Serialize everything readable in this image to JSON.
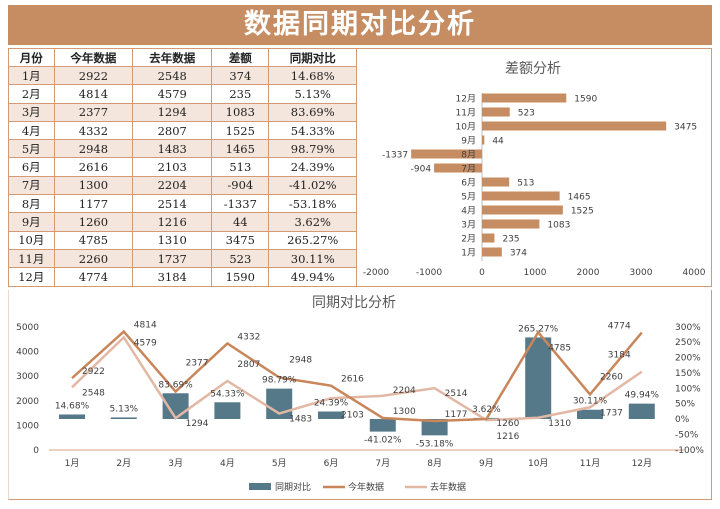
{
  "title": "数据同期对比分析",
  "table": {
    "headers": [
      "月份",
      "今年数据",
      "去年数据",
      "差额",
      "同期对比"
    ],
    "rows": [
      [
        "1月",
        "2922",
        "2548",
        "374",
        "14.68%"
      ],
      [
        "2月",
        "4814",
        "4579",
        "235",
        "5.13%"
      ],
      [
        "3月",
        "2377",
        "1294",
        "1083",
        "83.69%"
      ],
      [
        "4月",
        "4332",
        "2807",
        "1525",
        "54.33%"
      ],
      [
        "5月",
        "2948",
        "1483",
        "1465",
        "98.79%"
      ],
      [
        "6月",
        "2616",
        "2103",
        "513",
        "24.39%"
      ],
      [
        "7月",
        "1300",
        "2204",
        "-904",
        "-41.02%"
      ],
      [
        "8月",
        "1177",
        "2514",
        "-1337",
        "-53.18%"
      ],
      [
        "9月",
        "1260",
        "1216",
        "44",
        "3.62%"
      ],
      [
        "10月",
        "4785",
        "1310",
        "3475",
        "265.27%"
      ],
      [
        "11月",
        "2260",
        "1737",
        "523",
        "30.11%"
      ],
      [
        "12月",
        "4774",
        "3184",
        "1590",
        "49.94%"
      ]
    ]
  },
  "chart_data": [
    {
      "type": "bar",
      "orientation": "horizontal",
      "title": "差额分析",
      "categories": [
        "1月",
        "2月",
        "3月",
        "4月",
        "5月",
        "6月",
        "7月",
        "8月",
        "9月",
        "10月",
        "11月",
        "12月"
      ],
      "values": [
        374,
        235,
        1083,
        1525,
        1465,
        513,
        -904,
        -1337,
        44,
        3475,
        523,
        1590
      ],
      "xlim": [
        -2000,
        4000
      ],
      "xticks": [
        "-2000",
        "-1000",
        "0",
        "1000",
        "2000",
        "3000",
        "4000"
      ],
      "color": "#c68c62",
      "grid": false
    },
    {
      "type": "bar+line",
      "title": "同期对比分析",
      "categories": [
        "1月",
        "2月",
        "3月",
        "4月",
        "5月",
        "6月",
        "7月",
        "8月",
        "9月",
        "10月",
        "11月",
        "12月"
      ],
      "series": [
        {
          "name": "同期对比",
          "type": "bar",
          "axis": "right",
          "values": [
            14.68,
            5.13,
            83.69,
            54.33,
            98.79,
            24.39,
            -41.02,
            -53.18,
            3.62,
            265.27,
            30.11,
            49.94
          ],
          "labels": [
            "14.68%",
            "5.13%",
            "83.69%",
            "54.33%",
            "98.79%",
            "24.39%",
            "-41.02%",
            "-53.18%",
            "3.62%",
            "265.27%",
            "30.11%",
            "49.94%"
          ],
          "color": "#56798a"
        },
        {
          "name": "今年数据",
          "type": "line",
          "axis": "left",
          "values": [
            2922,
            4814,
            2377,
            4332,
            2948,
            2616,
            1300,
            1177,
            1260,
            4785,
            2260,
            4774
          ],
          "color": "#c8865a"
        },
        {
          "name": "去年数据",
          "type": "line",
          "axis": "left",
          "values": [
            2548,
            4579,
            1294,
            2807,
            1483,
            2103,
            2204,
            2514,
            1216,
            1310,
            1737,
            3184
          ],
          "color": "#e2b8a5"
        }
      ],
      "ylim_left": [
        0,
        5000
      ],
      "yticks_left": [
        "0",
        "1000",
        "2000",
        "3000",
        "4000",
        "5000"
      ],
      "ylim_right": [
        -100,
        300
      ],
      "yticks_right": [
        "-100%",
        "-50%",
        "0%",
        "50%",
        "100%",
        "150%",
        "200%",
        "250%",
        "300%"
      ],
      "legend": "bottom",
      "grid": false
    }
  ]
}
